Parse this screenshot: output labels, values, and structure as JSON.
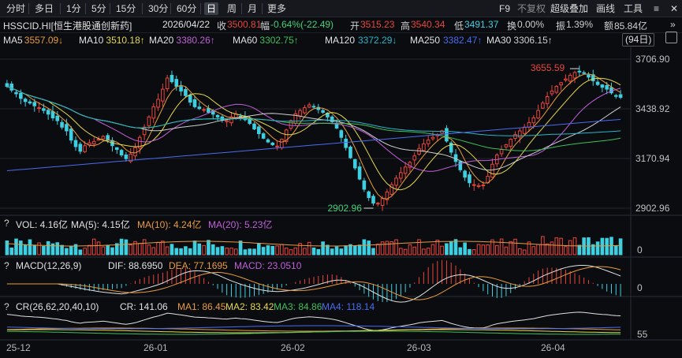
{
  "toolbar": {
    "periods": [
      "分时",
      "多日",
      "1分",
      "5分",
      "15分",
      "30分",
      "60分",
      "日",
      "周",
      "月",
      "更多"
    ],
    "active_period": "日",
    "right": {
      "f9": "F9",
      "fuquan": "不复权",
      "overlay": "超级叠加",
      "draw": "画线",
      "tools": "工具"
    }
  },
  "header": {
    "symbol": "HSSCID.HI[恒生港股通创新药]",
    "date": "2026/04/22",
    "close_label": "收",
    "close": "3500.81",
    "change_label": "幅",
    "change": "-0.64%(-22.49)",
    "open_label": "开",
    "open": "3515.23",
    "high_label": "高",
    "high": "3540.34",
    "low_label": "低",
    "low": "3491.37",
    "turnover_label": "换",
    "turnover": "0.00%",
    "amplitude_label": "振",
    "amplitude": "1.39%",
    "amount_label": "额",
    "amount": "85.84亿"
  },
  "ma_legend": [
    {
      "name": "MA5",
      "value": "3557.09↓",
      "color": "#e89b3c"
    },
    {
      "name": "MA10",
      "value": "3510.18↑",
      "color": "#e6d84a"
    },
    {
      "name": "MA20",
      "value": "3380.26↑",
      "color": "#c15fd8"
    },
    {
      "name": "MA60",
      "value": "3302.75↑",
      "color": "#3fbf5a"
    },
    {
      "name": "MA120",
      "value": "3372.29↓",
      "color": "#27b5c8"
    },
    {
      "name": "MA250",
      "value": "3382.47↑",
      "color": "#4a6cf0"
    },
    {
      "name": "MA30",
      "value": "3306.15↑",
      "color": "#cfcfcf"
    }
  ],
  "bars_badge": "(94日)",
  "y_axis": {
    "ticks": [
      "3706.90",
      "3438.92",
      "3170.94",
      "2902.96"
    ],
    "values": [
      3706.9,
      3438.92,
      3170.94,
      2902.96
    ]
  },
  "annotations": {
    "high": "3655.59",
    "low": "2902.96"
  },
  "volume_panel": {
    "question": "?",
    "title": "VOL: 4.16亿",
    "ma5": "MA(5): 4.15亿",
    "ma10": "MA(10): 4.24亿",
    "ma20": "MA(20): 5.23亿",
    "axis": "0",
    "colors": {
      "title": "#e0e0e0",
      "ma5": "#e0e0e0",
      "ma10": "#e89b3c",
      "ma20": "#c15fd8"
    }
  },
  "macd_panel": {
    "question": "?",
    "title": "MACD(12,26,9)",
    "dif": "DIF: 88.6950",
    "dea": "DEA: 77.1695",
    "macd": "MACD: 23.0510",
    "axis": "0",
    "colors": {
      "dif": "#e0e0e0",
      "dea": "#e89b3c",
      "macd": "#c15fd8"
    }
  },
  "cr_panel": {
    "question": "?",
    "title": "CR(26,62,20,40,10)",
    "cr": "CR: 141.06",
    "ma1": "MA1: 86.45",
    "ma2": "MA2: 83.42",
    "ma3": "MA3: 84.86",
    "ma4": "MA4: 118.14",
    "axis": "55",
    "colors": {
      "cr": "#e0e0e0",
      "ma1": "#e89b3c",
      "ma2": "#e6d84a",
      "ma3": "#3fbf5a",
      "ma4": "#4a6cf0"
    }
  },
  "x_axis": {
    "labels": [
      "25-12",
      "26-01",
      "26-02",
      "26-03",
      "26-04"
    ]
  },
  "colors": {
    "up": "#e8453c",
    "down": "#3ecfe0",
    "bg": "#0b0c10"
  },
  "chart_data": {
    "type": "candlestick",
    "y_range": [
      2902.96,
      3706.9
    ],
    "ticks": [
      3706.9,
      3438.92,
      3170.94,
      2902.96
    ],
    "x_labels": [
      "25-12",
      "26-01",
      "26-02",
      "26-03",
      "26-04"
    ],
    "max_annotation": 3655.59,
    "min_annotation": 2902.96,
    "last_candle": {
      "date": "2026/04/22",
      "open": 3515.23,
      "high": 3540.34,
      "low": 3491.37,
      "close": 3500.81
    },
    "closes": [
      3560,
      3540,
      3520,
      3495,
      3478,
      3470,
      3455,
      3445,
      3430,
      3410,
      3390,
      3375,
      3340,
      3320,
      3270,
      3235,
      3210,
      3240,
      3255,
      3262,
      3275,
      3290,
      3270,
      3240,
      3220,
      3190,
      3170,
      3195,
      3230,
      3285,
      3340,
      3395,
      3450,
      3490,
      3545,
      3605,
      3585,
      3560,
      3535,
      3510,
      3475,
      3450,
      3440,
      3435,
      3420,
      3410,
      3395,
      3380,
      3375,
      3395,
      3410,
      3388,
      3380,
      3360,
      3330,
      3305,
      3280,
      3260,
      3245,
      3238,
      3275,
      3325,
      3375,
      3412,
      3430,
      3445,
      3460,
      3450,
      3435,
      3420,
      3395,
      3370,
      3335,
      3285,
      3230,
      3175,
      3120,
      3060,
      3005,
      2960,
      2930,
      2930,
      2955,
      2990,
      3030,
      3065,
      3095,
      3125,
      3150,
      3185,
      3225,
      3250,
      3270,
      3285,
      3300,
      3320,
      3265,
      3205,
      3155,
      3110,
      3070,
      3040,
      3030,
      3025,
      3028,
      3075,
      3140,
      3190,
      3220,
      3245,
      3275,
      3300,
      3320,
      3340,
      3365,
      3390,
      3430,
      3470,
      3505,
      3535,
      3560,
      3580,
      3600,
      3620,
      3635,
      3640,
      3630,
      3610,
      3590,
      3570,
      3555,
      3545,
      3525,
      3510,
      3500.81
    ]
  }
}
